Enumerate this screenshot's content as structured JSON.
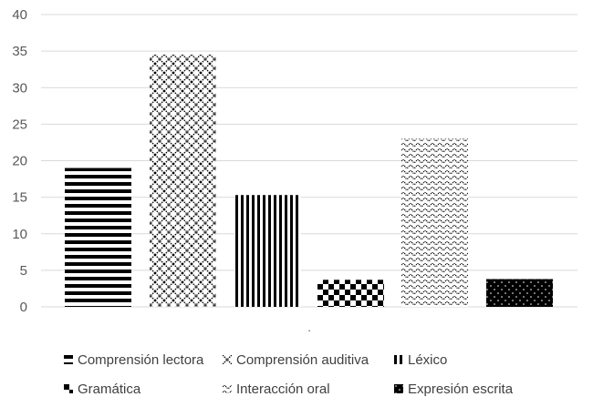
{
  "chart_data": {
    "type": "bar",
    "categories": [
      "."
    ],
    "series": [
      {
        "name": "Comprensión lectora",
        "values": [
          19
        ],
        "pattern": "hstripes",
        "color": "#000000"
      },
      {
        "name": "Comprensión auditiva",
        "values": [
          34.5
        ],
        "pattern": "diamonds",
        "color": "#000000"
      },
      {
        "name": "Léxico",
        "values": [
          15.3
        ],
        "pattern": "vstripes",
        "color": "#000000"
      },
      {
        "name": "Gramática",
        "values": [
          3.7
        ],
        "pattern": "checker",
        "color": "#000000"
      },
      {
        "name": "Interacción oral",
        "values": [
          23
        ],
        "pattern": "waves",
        "color": "#000000"
      },
      {
        "name": "Expresión escrita",
        "values": [
          3.8
        ],
        "pattern": "dots",
        "color": "#000000"
      }
    ],
    "title": "",
    "xlabel": "",
    "ylabel": "",
    "ylim": [
      0,
      40
    ],
    "yticks": [
      "0",
      "5",
      "10",
      "15",
      "20",
      "25",
      "30",
      "35",
      "40"
    ],
    "grid": true,
    "legend_position": "bottom"
  }
}
